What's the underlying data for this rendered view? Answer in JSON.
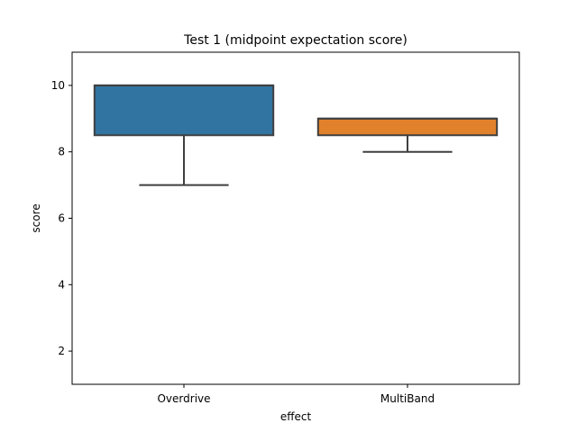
{
  "chart_data": {
    "type": "box",
    "title": "Test 1 (midpoint expectation score)",
    "xlabel": "effect",
    "ylabel": "score",
    "ylim": [
      1,
      11
    ],
    "yticks": [
      2,
      4,
      6,
      8,
      10
    ],
    "categories": [
      "Overdrive",
      "MultiBand"
    ],
    "boxes": [
      {
        "name": "Overdrive",
        "whisker_low": 7,
        "q1": 8.5,
        "median": 10,
        "q3": 10,
        "whisker_high": 10,
        "color": "#3274a1"
      },
      {
        "name": "MultiBand",
        "whisker_low": 8,
        "q1": 8.5,
        "median": 9,
        "q3": 9,
        "whisker_high": 9,
        "color": "#e1812c"
      }
    ],
    "grid": false,
    "legend": "none"
  }
}
